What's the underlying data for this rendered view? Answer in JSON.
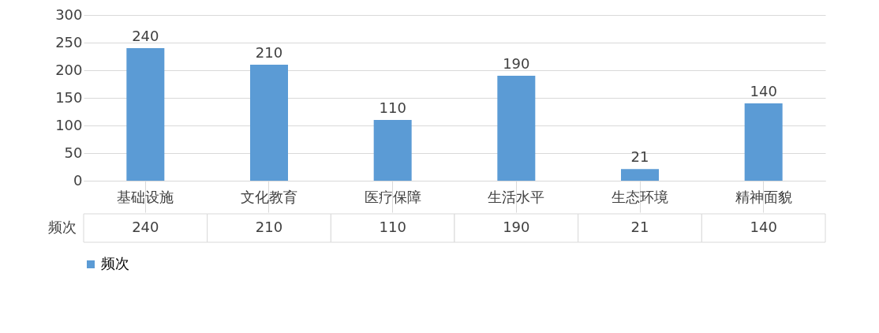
{
  "chart_data": {
    "type": "bar",
    "categories": [
      "基础设施",
      "文化教育",
      "医疗保障",
      "生活水平",
      "生态环境",
      "精神面貌"
    ],
    "series": [
      {
        "name": "频次",
        "color": "#5b9bd5",
        "values": [
          240,
          210,
          110,
          190,
          21,
          140
        ]
      }
    ],
    "annotations": [
      "240",
      "210",
      "110",
      "190",
      "21",
      "140"
    ],
    "ylim": [
      0,
      300
    ],
    "yticks": [
      0,
      50,
      100,
      150,
      200,
      250,
      300
    ],
    "grid": "y",
    "data_labels": true,
    "legend": "bottom"
  }
}
